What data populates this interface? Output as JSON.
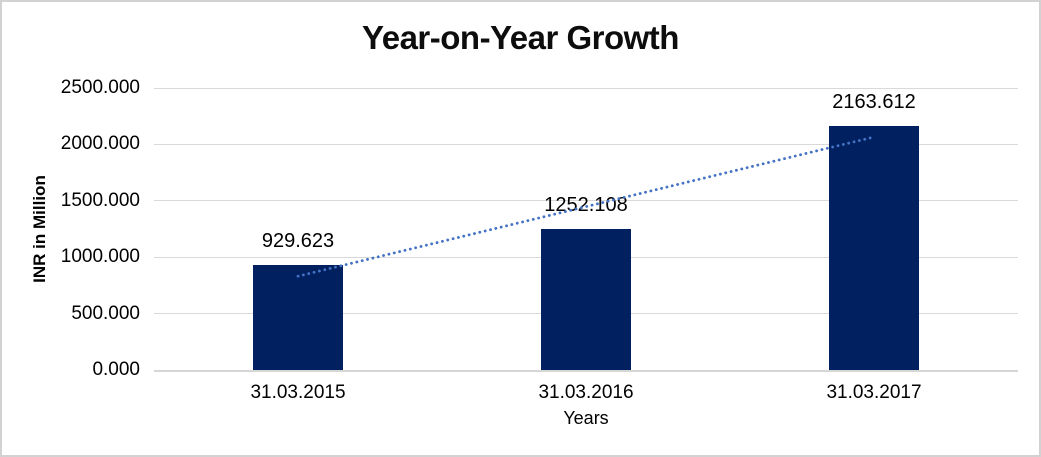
{
  "window": {
    "background": "#ffffff",
    "border_color": "#d2d2d2"
  },
  "chart_data": {
    "type": "bar",
    "title": "Year-on-Year Growth",
    "xlabel": "Years",
    "ylabel": "INR in Million",
    "categories": [
      "31.03.2015",
      "31.03.2016",
      "31.03.2017"
    ],
    "values": [
      929.623,
      1252.108,
      2163.612
    ],
    "value_labels": [
      "929.623",
      "1252.108",
      "2163.612"
    ],
    "ylim": [
      0,
      2500
    ],
    "y_ticks": [
      0,
      500,
      1000,
      1500,
      2000,
      2500
    ],
    "y_tick_labels": [
      "0.000",
      "500.000",
      "1000.000",
      "1500.000",
      "2000.000",
      "2500.000"
    ],
    "grid": true,
    "legend": "none",
    "bar_color": "#002060",
    "gridline_color": "#d9d9d9",
    "axis_line_color": "#d6d6d6",
    "label_color": "#000000",
    "trendline": {
      "type": "linear",
      "style": "dotted",
      "color": "#4472c4"
    }
  }
}
